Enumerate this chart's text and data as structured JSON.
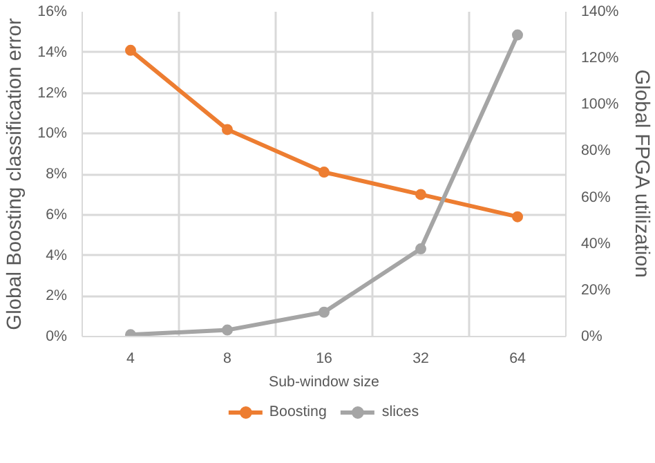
{
  "chart_data": {
    "type": "line",
    "xlabel": "Sub-window size",
    "ylabel": "Global Boosting classification error",
    "y2label": "Global FPGA utilization",
    "categories": [
      "4",
      "8",
      "16",
      "32",
      "64"
    ],
    "series": [
      {
        "name": "Boosting",
        "color": "#ed7d31",
        "values": [
          14.1,
          10.2,
          8.1,
          7.0,
          5.9
        ]
      },
      {
        "name": "slices",
        "color": "#a5a5a5",
        "values": [
          0.8,
          2.8,
          10.5,
          37.8,
          130
        ],
        "axis": "y2"
      }
    ],
    "ylim": [
      0,
      16
    ],
    "yticks": [
      {
        "value": 0,
        "label": "0%"
      },
      {
        "value": 2,
        "label": "2%"
      },
      {
        "value": 4,
        "label": "4%"
      },
      {
        "value": 6,
        "label": "6%"
      },
      {
        "value": 8,
        "label": "8%"
      },
      {
        "value": 10,
        "label": "10%"
      },
      {
        "value": 12,
        "label": "12%"
      },
      {
        "value": 14,
        "label": "14%"
      },
      {
        "value": 16,
        "label": "16%"
      }
    ],
    "y2lim": [
      0,
      140
    ],
    "y2ticks": [
      {
        "value": 0,
        "label": "0%"
      },
      {
        "value": 20,
        "label": "20%"
      },
      {
        "value": 40,
        "label": "40%"
      },
      {
        "value": 60,
        "label": "60%"
      },
      {
        "value": 80,
        "label": "80%"
      },
      {
        "value": 100,
        "label": "100%"
      },
      {
        "value": 120,
        "label": "120%"
      },
      {
        "value": 140,
        "label": "140%"
      }
    ],
    "grid": true,
    "legend": "bottom",
    "marker": "circle",
    "line_style": "solid"
  }
}
